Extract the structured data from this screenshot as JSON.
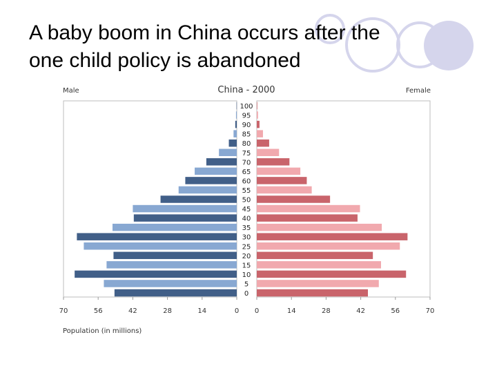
{
  "slide": {
    "title_line1": "A baby boom in China occurs after the",
    "title_line2": "one child policy is abandoned"
  },
  "colors": {
    "male_dark": "#415f88",
    "male_light": "#88a8d2",
    "female_dark": "#c9646b",
    "female_light": "#f1a9ae",
    "deco_circle": "#d5d5ec"
  },
  "chart_data": {
    "type": "bar",
    "subtype": "population-pyramid",
    "title": "China - 2000",
    "left_label": "Male",
    "right_label": "Female",
    "xlabel": "Population (in millions)",
    "xlim": [
      0,
      70
    ],
    "x_ticks": [
      0,
      14,
      28,
      42,
      56,
      70
    ],
    "age_groups": [
      "100",
      "95",
      "90",
      "85",
      "80",
      "75",
      "70",
      "65",
      "60",
      "55",
      "50",
      "45",
      "40",
      "35",
      "30",
      "25",
      "20",
      "15",
      "10",
      "5",
      "0"
    ],
    "series": [
      {
        "name": "Male",
        "values": [
          0.1,
          0.3,
          0.6,
          1.3,
          3.2,
          7.2,
          12.3,
          17.0,
          20.8,
          23.5,
          30.8,
          42.0,
          41.6,
          50.2,
          64.6,
          61.8,
          49.8,
          52.6,
          65.5,
          53.7,
          49.4
        ]
      },
      {
        "name": "Female",
        "values": [
          0.2,
          0.5,
          1.1,
          2.5,
          5.0,
          9.0,
          13.2,
          17.6,
          20.2,
          22.2,
          29.6,
          41.7,
          40.7,
          50.5,
          60.9,
          57.8,
          46.9,
          50.2,
          60.3,
          49.3,
          44.9
        ]
      }
    ]
  }
}
